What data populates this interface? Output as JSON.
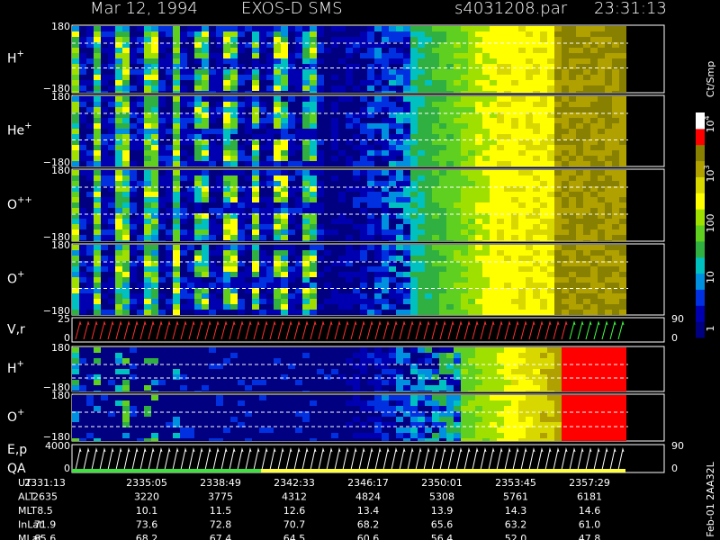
{
  "header": {
    "date": "Mar 12, 1994",
    "instrument": "EXOS-D SMS",
    "file": "s4031208.par",
    "time": "23:31:13"
  },
  "panels": [
    {
      "label": "H",
      "charge": "+",
      "ticks": [
        "180",
        "−180"
      ]
    },
    {
      "label": "He",
      "charge": "+",
      "ticks": [
        "180",
        "−180"
      ]
    },
    {
      "label": "O",
      "charge": "++",
      "ticks": [
        "180",
        "−180"
      ]
    },
    {
      "label": "O",
      "charge": "+",
      "ticks": [
        "180",
        "−180"
      ]
    },
    {
      "label": "V,r",
      "ticks": [
        "25",
        "0"
      ],
      "right_ticks": [
        "90",
        "0"
      ]
    },
    {
      "label": "H",
      "charge": "+",
      "ticks": [
        "180",
        "−180"
      ]
    },
    {
      "label": "O",
      "charge": "+",
      "ticks": [
        "180",
        "−180"
      ]
    },
    {
      "label": "E,p",
      "label2": "QA",
      "ticks": [
        "4000",
        "0"
      ],
      "right_ticks": [
        "90",
        "0"
      ]
    }
  ],
  "colorbar": {
    "unit": "Ct/Smp",
    "ticks": [
      {
        "base": "10",
        "exp": "4"
      },
      {
        "base": "10",
        "exp": "3"
      },
      {
        "base": "100"
      },
      {
        "base": "10"
      },
      {
        "base": "1"
      }
    ]
  },
  "table": {
    "row_labels": [
      "UT",
      "ALT",
      "MLT",
      "InLat",
      "MLat"
    ],
    "rows": [
      [
        "2331:13",
        "2335:05",
        "2338:49",
        "2342:33",
        "2346:17",
        "2350:01",
        "2353:45",
        "2357:29"
      ],
      [
        "2635",
        "3220",
        "3775",
        "4312",
        "4824",
        "5308",
        "5761",
        "6181"
      ],
      [
        "8.5",
        "10.1",
        "11.5",
        "12.6",
        "13.4",
        "13.9",
        "14.3",
        "14.6"
      ],
      [
        "71.9",
        "73.6",
        "72.8",
        "70.7",
        "68.2",
        "65.6",
        "63.2",
        "61.0"
      ],
      [
        "65.6",
        "68.2",
        "67.4",
        "64.5",
        "60.6",
        "56.4",
        "52.0",
        "47.8"
      ]
    ]
  },
  "footer": "Feb-01 2AA32L"
}
